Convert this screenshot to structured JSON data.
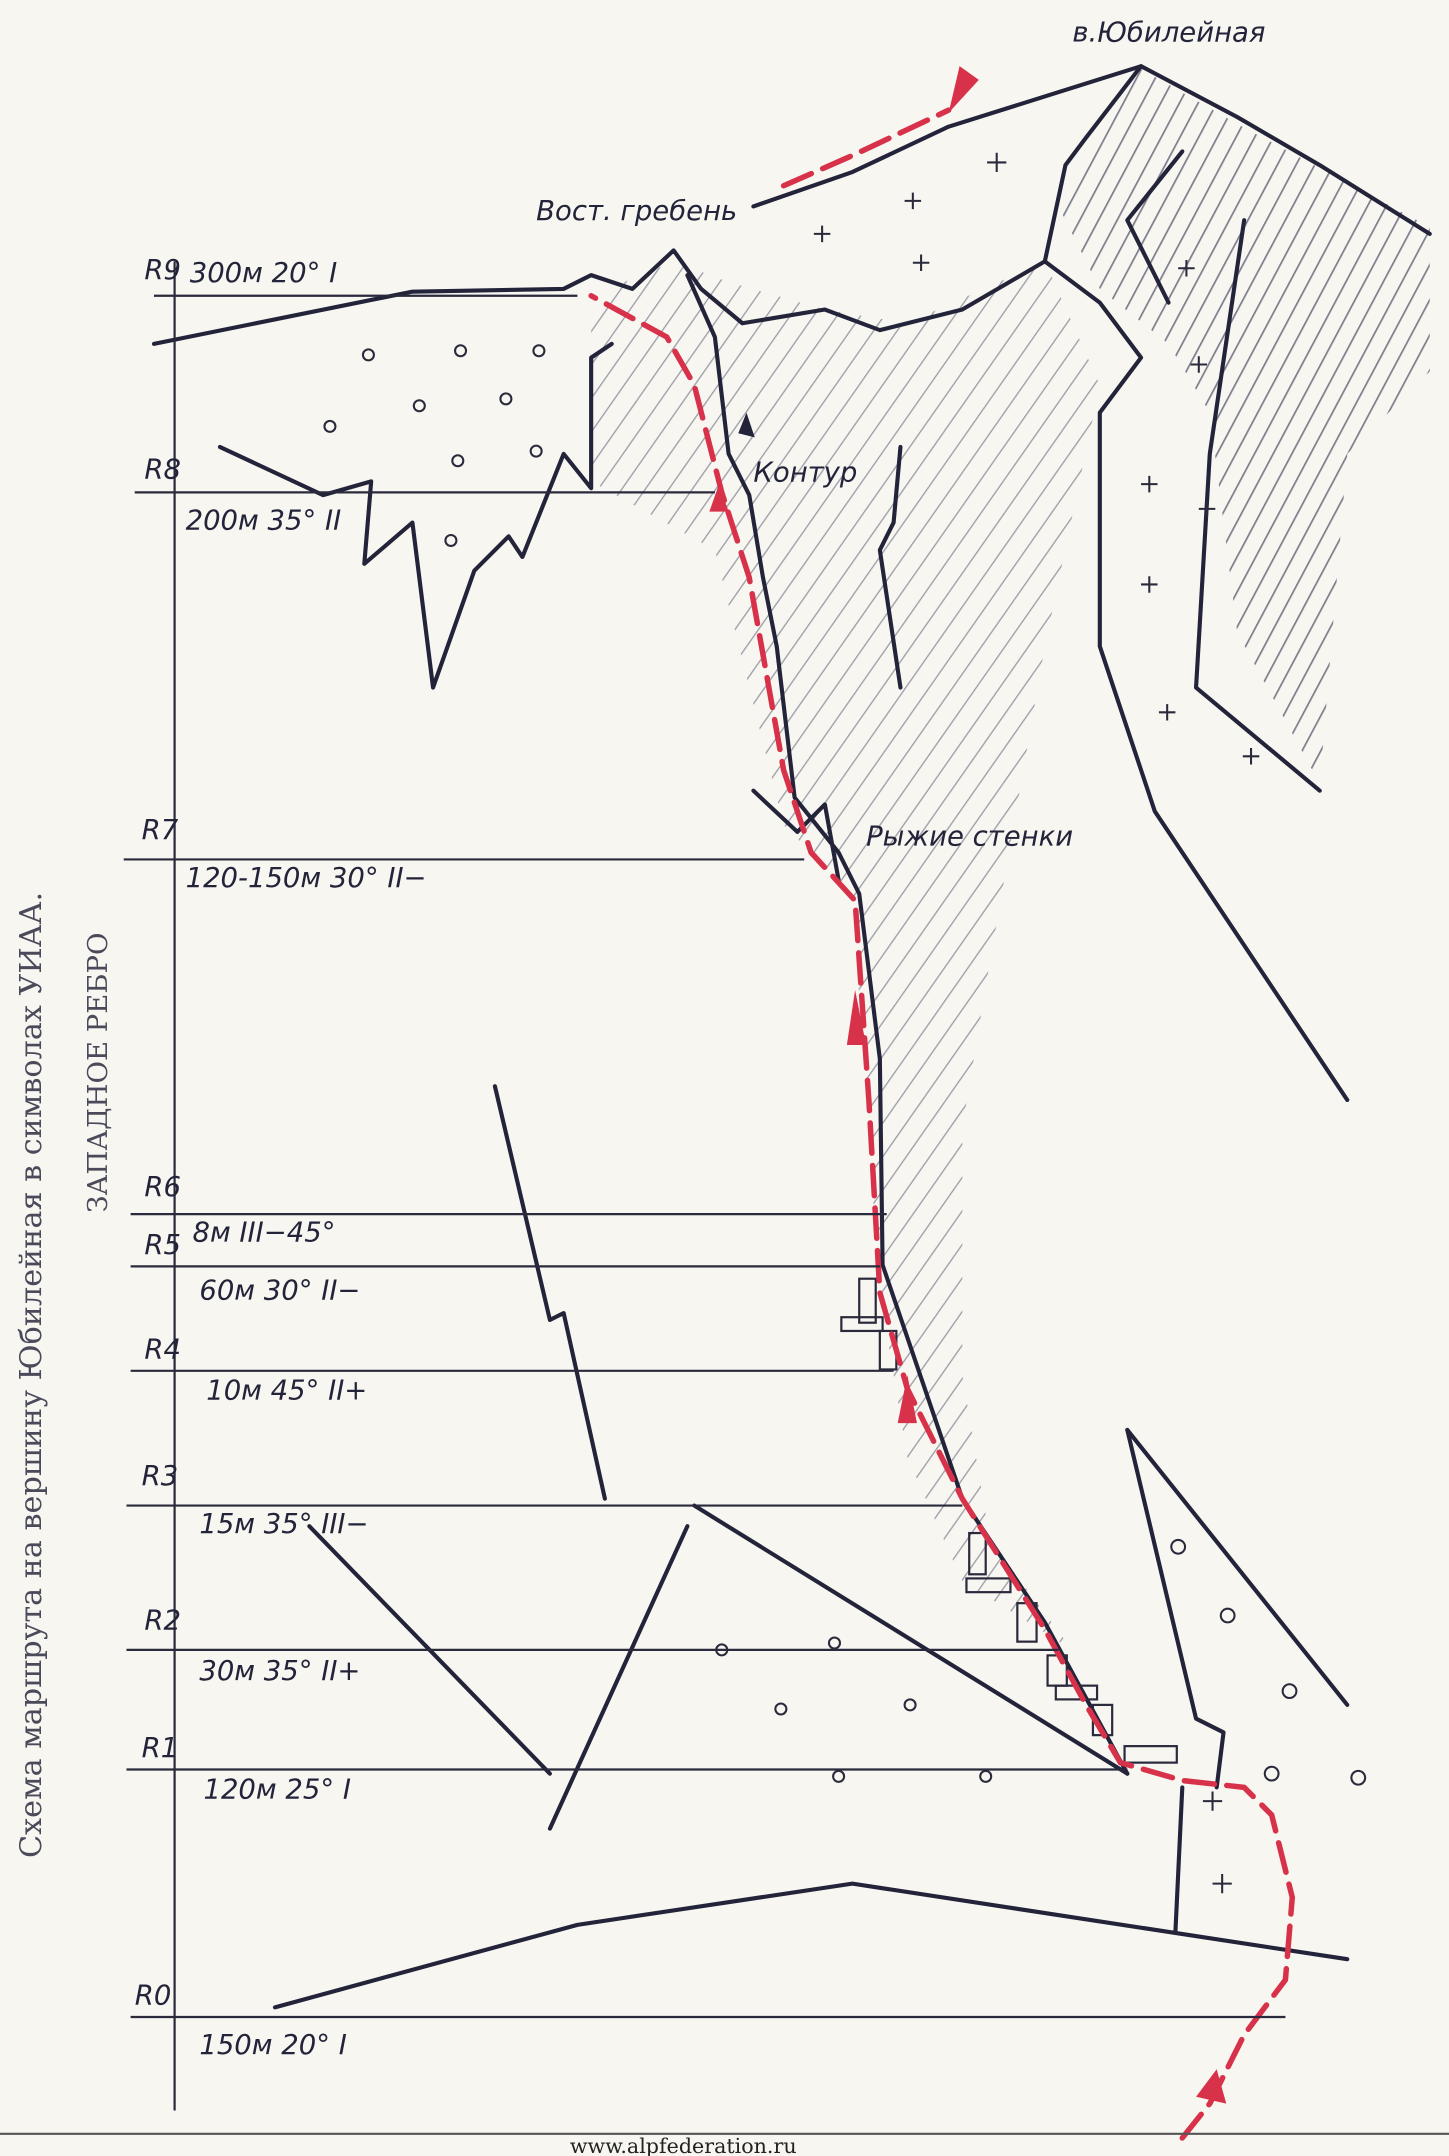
{
  "header": {
    "title": "Схема маршрута на вершину Юбилейная в символах УИАА.",
    "subtitle": "ЗАПАДНОЕ РЕБРО"
  },
  "annotations": {
    "peak": "в.Юбилейная",
    "ridge": "Вост. гребень",
    "contour": "Контур",
    "red_walls": "Рыжие стенки"
  },
  "sections": [
    {
      "label": "R9",
      "text": "300м 20° I"
    },
    {
      "label": "R8",
      "text": "200м 35° II"
    },
    {
      "label": "R7",
      "text": "120-150м 30° II−"
    },
    {
      "label": "R6",
      "text": "8м III−45°"
    },
    {
      "label": "R5",
      "text": "60м 30° II−"
    },
    {
      "label": "R4",
      "text": "10м 45° II+"
    },
    {
      "label": "R3",
      "text": "15м 35° III−"
    },
    {
      "label": "R2",
      "text": "30м 35° II+"
    },
    {
      "label": "R1",
      "text": "120м 25° I"
    },
    {
      "label": "R0",
      "text": "150м 20° I"
    }
  ],
  "footer": {
    "url": "www.alpfederation.ru"
  }
}
